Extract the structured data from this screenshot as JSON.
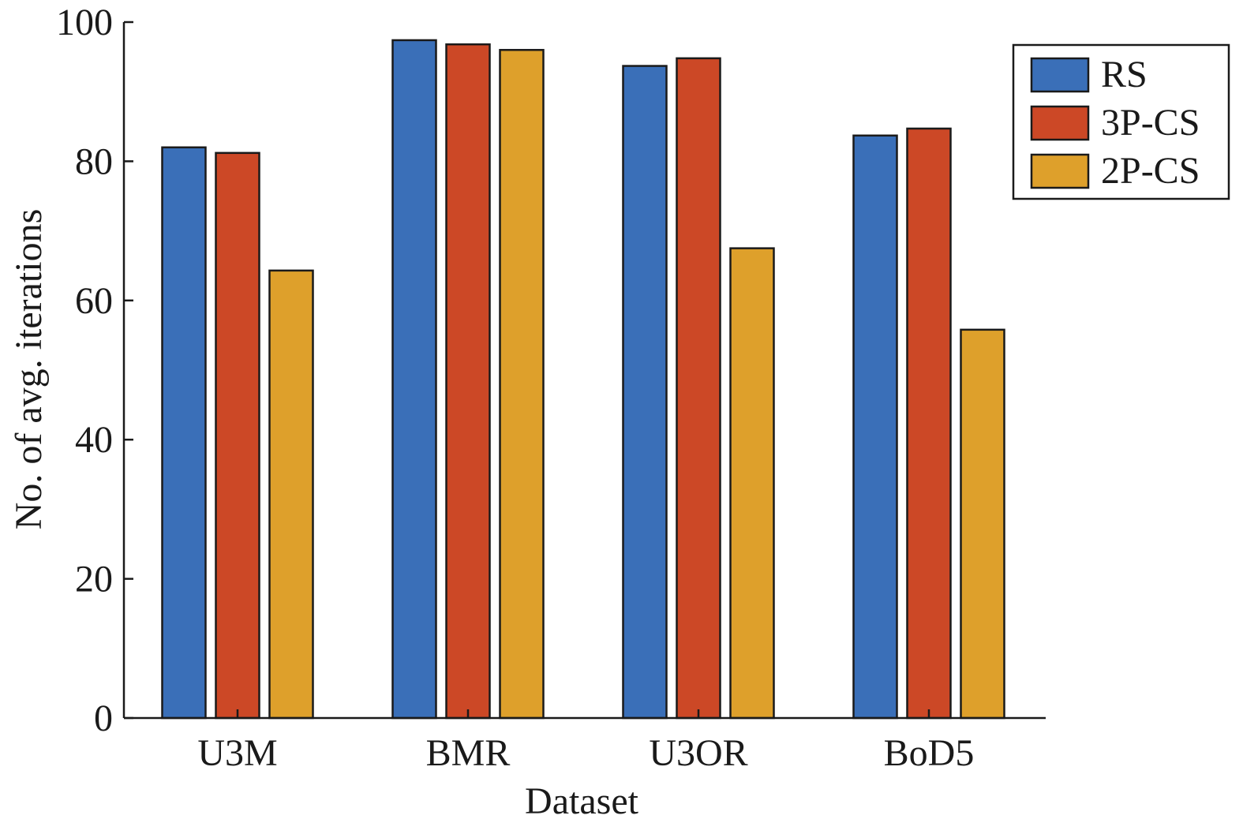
{
  "chart_data": {
    "type": "bar",
    "categories": [
      "U3M",
      "BMR",
      "U3OR",
      "BoD5"
    ],
    "series": [
      {
        "name": "RS",
        "color": "#3A6FB8",
        "values": [
          82.0,
          97.4,
          93.7,
          83.7
        ]
      },
      {
        "name": "3P-CS",
        "color": "#CC4826",
        "values": [
          81.2,
          96.8,
          94.8,
          84.7
        ]
      },
      {
        "name": "2P-CS",
        "color": "#DEA02B",
        "values": [
          64.3,
          96.0,
          67.5,
          55.8
        ]
      }
    ],
    "xlabel": "Dataset",
    "ylabel": "No. of avg. iterations",
    "ylim": [
      0,
      100
    ],
    "yticks": [
      0,
      20,
      40,
      60,
      80,
      100
    ],
    "grid": false,
    "legend_position": "top-right"
  }
}
